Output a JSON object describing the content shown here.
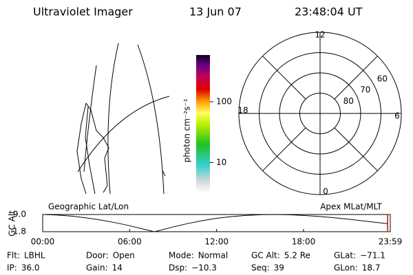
{
  "header": {
    "title": "Ultraviolet Imager",
    "date": "13 Jun 07",
    "time": "23:48:04 UT"
  },
  "colorbar": {
    "label": "photon cm⁻²s⁻¹",
    "scale": "log",
    "lim": [
      3.2,
      590
    ],
    "ticks": [
      10,
      100
    ]
  },
  "polar": {
    "lat_lim": [
      90,
      50
    ],
    "lat_rings": [
      80,
      70,
      60
    ],
    "mlt_ticks": [
      12,
      18,
      0,
      6
    ]
  },
  "chart_data": {
    "type": "line",
    "y_label": "GC Alt",
    "left_label": "Geographic Lat/Lon",
    "right_label": "Apex MLat/MLT",
    "x": [
      0,
      1,
      2,
      3,
      4,
      5,
      6,
      7,
      7.7,
      8,
      9,
      10,
      11,
      12,
      13,
      14,
      15,
      16,
      17,
      18,
      19,
      20,
      21,
      22,
      23,
      23.8
    ],
    "values": [
      9.0,
      8.8,
      8.3,
      7.6,
      6.7,
      5.6,
      4.3,
      2.8,
      1.8,
      2.2,
      3.8,
      5.2,
      6.4,
      7.4,
      8.1,
      8.6,
      8.9,
      9.0,
      8.9,
      8.6,
      8.2,
      7.7,
      7.1,
      6.4,
      5.7,
      5.2
    ],
    "color": "#000000",
    "marker_x": 23.8,
    "marker_color": "#cc0000",
    "xlim": [
      0,
      23.983
    ],
    "xticks": [
      {
        "value": 0,
        "label": "00:00"
      },
      {
        "value": 6,
        "label": "06:00"
      },
      {
        "value": 12,
        "label": "12:00"
      },
      {
        "value": 18,
        "label": "18:00"
      },
      {
        "value": 23.983,
        "label": "23:59"
      }
    ],
    "ylim": [
      1.8,
      9.0
    ],
    "yticks": [
      {
        "value": 9.0,
        "label": "9.0"
      },
      {
        "value": 1.8,
        "label": "1.8"
      }
    ]
  },
  "footer": [
    [
      {
        "label": "Flt:",
        "value": "LBHL"
      },
      {
        "label": "Door:",
        "value": "Open"
      },
      {
        "label": "Mode:",
        "value": "Normal"
      },
      {
        "label": "GC Alt:",
        "value": "5.2 Re"
      },
      {
        "label": "GLat:",
        "value": "−71.1"
      }
    ],
    [
      {
        "label": "IP:",
        "value": "36.0"
      },
      {
        "label": "Gain:",
        "value": "14"
      },
      {
        "label": "Dsp:",
        "value": "−10.3"
      },
      {
        "label": "Seq:",
        "value": "39"
      },
      {
        "label": "GLon:",
        "value": "18.7"
      }
    ]
  ]
}
